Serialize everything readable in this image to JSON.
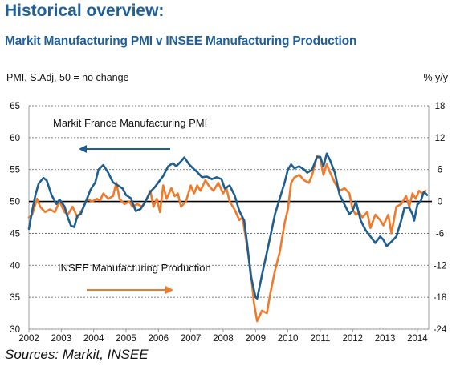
{
  "header": {
    "title": "Historical overview:",
    "subtitle": "Markit Manufacturing PMI v INSEE Manufacturing Production"
  },
  "chart_data": {
    "type": "line",
    "left_axis_label": "PMI, S.Adj, 50 = no change",
    "right_axis_label": "% y/y",
    "left_axis": {
      "min": 30,
      "max": 65,
      "ticks": [
        30,
        35,
        40,
        45,
        50,
        55,
        60,
        65
      ]
    },
    "right_axis": {
      "min": -24,
      "max": 18,
      "ticks": [
        -24,
        -18,
        -12,
        -6,
        0,
        6,
        12,
        18
      ]
    },
    "x_axis": {
      "min": 2002.0,
      "max": 2014.35,
      "ticks": [
        "2002",
        "2003",
        "2004",
        "2005",
        "2006",
        "2007",
        "2008",
        "2009",
        "2010",
        "2011",
        "2012",
        "2013",
        "2014"
      ]
    },
    "reference_line": {
      "axis": "left",
      "value": 50
    },
    "grid": "horizontal dashed",
    "annotations": [
      {
        "text": "Markit France Manufacturing  PMI",
        "arrow": "left",
        "color": "#1f5f8f"
      },
      {
        "text": "INSEE  Manufacturing  Production",
        "arrow": "right",
        "color": "#f07a2a"
      }
    ],
    "series": [
      {
        "name": "Markit France Manufacturing  PMI",
        "axis": "left",
        "color": "#1f5f8f",
        "points": [
          [
            2002.0,
            45.7
          ],
          [
            2002.1,
            48.5
          ],
          [
            2002.2,
            51.0
          ],
          [
            2002.3,
            52.8
          ],
          [
            2002.45,
            53.7
          ],
          [
            2002.55,
            53.3
          ],
          [
            2002.7,
            51.0
          ],
          [
            2002.85,
            49.6
          ],
          [
            2002.95,
            50.3
          ],
          [
            2003.1,
            49.2
          ],
          [
            2003.2,
            47.5
          ],
          [
            2003.3,
            46.2
          ],
          [
            2003.4,
            46.0
          ],
          [
            2003.5,
            47.8
          ],
          [
            2003.6,
            48.0
          ],
          [
            2003.8,
            50.5
          ],
          [
            2003.9,
            51.8
          ],
          [
            2004.05,
            53.0
          ],
          [
            2004.15,
            55.0
          ],
          [
            2004.3,
            55.7
          ],
          [
            2004.45,
            54.5
          ],
          [
            2004.6,
            53.0
          ],
          [
            2004.75,
            52.5
          ],
          [
            2004.9,
            52.0
          ],
          [
            2005.0,
            51.0
          ],
          [
            2005.15,
            50.5
          ],
          [
            2005.3,
            48.5
          ],
          [
            2005.45,
            48.8
          ],
          [
            2005.6,
            50.0
          ],
          [
            2005.75,
            51.5
          ],
          [
            2005.9,
            52.3
          ],
          [
            2006.0,
            53.0
          ],
          [
            2006.15,
            54.0
          ],
          [
            2006.3,
            55.5
          ],
          [
            2006.45,
            56.0
          ],
          [
            2006.55,
            55.5
          ],
          [
            2006.7,
            56.3
          ],
          [
            2006.8,
            56.9
          ],
          [
            2006.95,
            55.8
          ],
          [
            2007.05,
            55.3
          ],
          [
            2007.2,
            54.6
          ],
          [
            2007.35,
            53.8
          ],
          [
            2007.5,
            53.9
          ],
          [
            2007.65,
            53.5
          ],
          [
            2007.8,
            53.8
          ],
          [
            2007.95,
            53.5
          ],
          [
            2008.05,
            52.0
          ],
          [
            2008.2,
            52.5
          ],
          [
            2008.35,
            51.0
          ],
          [
            2008.5,
            48.5
          ],
          [
            2008.65,
            47.0
          ],
          [
            2008.75,
            43.0
          ],
          [
            2008.85,
            38.5
          ],
          [
            2009.0,
            35.0
          ],
          [
            2009.05,
            34.8
          ],
          [
            2009.2,
            38.5
          ],
          [
            2009.35,
            42.0
          ],
          [
            2009.5,
            45.5
          ],
          [
            2009.6,
            48.0
          ],
          [
            2009.75,
            50.5
          ],
          [
            2009.9,
            53.0
          ],
          [
            2010.0,
            55.0
          ],
          [
            2010.1,
            55.8
          ],
          [
            2010.2,
            55.2
          ],
          [
            2010.35,
            55.5
          ],
          [
            2010.5,
            55.0
          ],
          [
            2010.6,
            54.5
          ],
          [
            2010.75,
            55.0
          ],
          [
            2010.9,
            57.0
          ],
          [
            2011.0,
            57.0
          ],
          [
            2011.1,
            55.5
          ],
          [
            2011.2,
            57.5
          ],
          [
            2011.3,
            56.5
          ],
          [
            2011.45,
            54.5
          ],
          [
            2011.6,
            51.0
          ],
          [
            2011.75,
            49.5
          ],
          [
            2011.9,
            48.0
          ],
          [
            2012.0,
            48.5
          ],
          [
            2012.1,
            50.0
          ],
          [
            2012.25,
            47.0
          ],
          [
            2012.4,
            45.5
          ],
          [
            2012.55,
            44.5
          ],
          [
            2012.7,
            43.5
          ],
          [
            2012.85,
            44.5
          ],
          [
            2012.95,
            44.0
          ],
          [
            2013.05,
            43.0
          ],
          [
            2013.2,
            43.7
          ],
          [
            2013.35,
            44.5
          ],
          [
            2013.5,
            47.0
          ],
          [
            2013.6,
            49.0
          ],
          [
            2013.75,
            49.0
          ],
          [
            2013.85,
            48.0
          ],
          [
            2013.9,
            47.0
          ],
          [
            2014.0,
            49.5
          ],
          [
            2014.1,
            50.0
          ],
          [
            2014.2,
            51.5
          ],
          [
            2014.3,
            51.0
          ]
        ]
      },
      {
        "name": "INSEE  Manufacturing  Production",
        "axis": "right",
        "color": "#f07a2a",
        "points": [
          [
            2002.0,
            -3.0
          ],
          [
            2002.1,
            -2.5
          ],
          [
            2002.25,
            0.5
          ],
          [
            2002.35,
            -1.0
          ],
          [
            2002.5,
            -2.0
          ],
          [
            2002.65,
            -1.5
          ],
          [
            2002.8,
            -2.0
          ],
          [
            2002.95,
            0.0
          ],
          [
            2003.1,
            -2.0
          ],
          [
            2003.2,
            -2.5
          ],
          [
            2003.35,
            -1.0
          ],
          [
            2003.5,
            -3.0
          ],
          [
            2003.65,
            -1.5
          ],
          [
            2003.8,
            0.5
          ],
          [
            2003.95,
            0.0
          ],
          [
            2004.1,
            0.5
          ],
          [
            2004.2,
            0.2
          ],
          [
            2004.3,
            1.5
          ],
          [
            2004.45,
            0.5
          ],
          [
            2004.6,
            1.0
          ],
          [
            2004.7,
            3.5
          ],
          [
            2004.8,
            0.5
          ],
          [
            2004.95,
            -0.5
          ],
          [
            2005.1,
            0.0
          ],
          [
            2005.2,
            -1.0
          ],
          [
            2005.35,
            -0.5
          ],
          [
            2005.5,
            -1.0
          ],
          [
            2005.6,
            0.0
          ],
          [
            2005.75,
            2.0
          ],
          [
            2005.85,
            -1.0
          ],
          [
            2005.95,
            0.5
          ],
          [
            2006.05,
            -2.0
          ],
          [
            2006.15,
            3.0
          ],
          [
            2006.25,
            0.5
          ],
          [
            2006.4,
            2.5
          ],
          [
            2006.5,
            1.0
          ],
          [
            2006.6,
            1.5
          ],
          [
            2006.7,
            -1.0
          ],
          [
            2006.85,
            0.0
          ],
          [
            2007.0,
            3.0
          ],
          [
            2007.1,
            1.5
          ],
          [
            2007.2,
            3.0
          ],
          [
            2007.3,
            2.0
          ],
          [
            2007.45,
            4.0
          ],
          [
            2007.55,
            3.0
          ],
          [
            2007.7,
            2.0
          ],
          [
            2007.85,
            3.5
          ],
          [
            2008.0,
            1.5
          ],
          [
            2008.1,
            2.5
          ],
          [
            2008.2,
            0.0
          ],
          [
            2008.35,
            -1.5
          ],
          [
            2008.5,
            -3.5
          ],
          [
            2008.6,
            -3.0
          ],
          [
            2008.7,
            -7.0
          ],
          [
            2008.85,
            -13.0
          ],
          [
            2008.95,
            -19.0
          ],
          [
            2009.05,
            -22.5
          ],
          [
            2009.2,
            -20.5
          ],
          [
            2009.35,
            -21.0
          ],
          [
            2009.45,
            -17.5
          ],
          [
            2009.6,
            -13.0
          ],
          [
            2009.75,
            -9.5
          ],
          [
            2009.9,
            -4.0
          ],
          [
            2010.0,
            -1.5
          ],
          [
            2010.1,
            3.5
          ],
          [
            2010.2,
            4.5
          ],
          [
            2010.35,
            5.0
          ],
          [
            2010.5,
            4.0
          ],
          [
            2010.65,
            3.5
          ],
          [
            2010.75,
            5.0
          ],
          [
            2010.9,
            8.5
          ],
          [
            2011.0,
            8.0
          ],
          [
            2011.1,
            5.0
          ],
          [
            2011.2,
            7.0
          ],
          [
            2011.3,
            5.5
          ],
          [
            2011.45,
            3.5
          ],
          [
            2011.6,
            2.0
          ],
          [
            2011.75,
            2.5
          ],
          [
            2011.9,
            1.5
          ],
          [
            2012.0,
            -1.5
          ],
          [
            2012.1,
            -2.5
          ],
          [
            2012.2,
            -2.0
          ],
          [
            2012.3,
            -3.0
          ],
          [
            2012.45,
            -2.0
          ],
          [
            2012.55,
            -5.0
          ],
          [
            2012.7,
            -2.5
          ],
          [
            2012.85,
            -3.5
          ],
          [
            2012.95,
            -4.5
          ],
          [
            2013.1,
            -2.5
          ],
          [
            2013.2,
            -6.0
          ],
          [
            2013.35,
            -1.0
          ],
          [
            2013.5,
            -0.5
          ],
          [
            2013.65,
            1.0
          ],
          [
            2013.75,
            -1.0
          ],
          [
            2013.85,
            1.5
          ],
          [
            2013.95,
            0.5
          ],
          [
            2014.05,
            2.0
          ],
          [
            2014.15,
            1.5
          ],
          [
            2014.25,
            2.0
          ]
        ]
      }
    ]
  },
  "source": "Sources: Markit, INSEE"
}
